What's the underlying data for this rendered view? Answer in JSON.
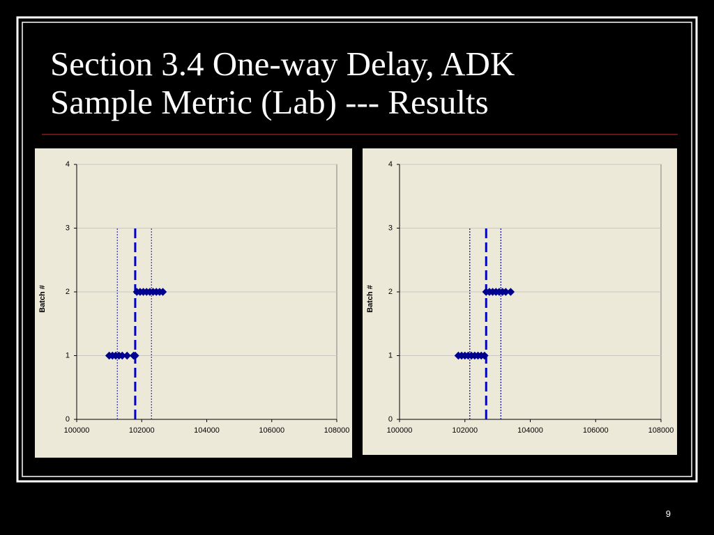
{
  "slide": {
    "title_lines": [
      "Section 3.4 One-way Delay, ADK",
      "Sample Metric (Lab) --- Results"
    ],
    "page_number": "9"
  },
  "chart_data": [
    {
      "type": "scatter",
      "ylabel": "Batch #",
      "xlim": [
        100000,
        108000
      ],
      "xticks": [
        100000,
        102000,
        104000,
        106000,
        108000
      ],
      "ylim": [
        0,
        4
      ],
      "yticks": [
        0,
        1,
        2,
        3,
        4
      ],
      "grid": true,
      "series": [
        {
          "color": "#000090",
          "x": [
            101000,
            101100,
            101200,
            101300,
            101400,
            101550,
            101750,
            101800
          ],
          "y": [
            1,
            1,
            1,
            1,
            1,
            1,
            1,
            1
          ]
        },
        {
          "color": "#000090",
          "x": [
            101850,
            101950,
            102050,
            102150,
            102250,
            102350,
            102450,
            102550,
            102650
          ],
          "y": [
            2,
            2,
            2,
            2,
            2,
            2,
            2,
            2,
            2
          ]
        }
      ],
      "reference_lines": [
        {
          "x": 101250,
          "ymax": 3,
          "style": "dotted",
          "color": "#3030b0"
        },
        {
          "x": 101800,
          "ymax": 3,
          "style": "dashed",
          "color": "#0000c0"
        },
        {
          "x": 102300,
          "ymax": 3,
          "style": "dotted",
          "color": "#3030b0"
        }
      ]
    },
    {
      "type": "scatter",
      "ylabel": "Batch #",
      "xlim": [
        100000,
        108000
      ],
      "xticks": [
        100000,
        102000,
        104000,
        106000,
        108000
      ],
      "ylim": [
        0,
        4
      ],
      "yticks": [
        0,
        1,
        2,
        3,
        4
      ],
      "grid": true,
      "series": [
        {
          "color": "#000090",
          "x": [
            101800,
            101900,
            102000,
            102100,
            102200,
            102300,
            102400,
            102500,
            102600
          ],
          "y": [
            1,
            1,
            1,
            1,
            1,
            1,
            1,
            1,
            1
          ]
        },
        {
          "color": "#000090",
          "x": [
            102650,
            102750,
            102850,
            102950,
            103050,
            103150,
            103250,
            103400
          ],
          "y": [
            2,
            2,
            2,
            2,
            2,
            2,
            2,
            2
          ]
        }
      ],
      "reference_lines": [
        {
          "x": 102150,
          "ymax": 3,
          "style": "dotted",
          "color": "#0000a0"
        },
        {
          "x": 102650,
          "ymax": 3,
          "style": "dashed",
          "color": "#0000c0"
        },
        {
          "x": 103100,
          "ymax": 3,
          "style": "dotted",
          "color": "#0000a0"
        }
      ]
    }
  ]
}
